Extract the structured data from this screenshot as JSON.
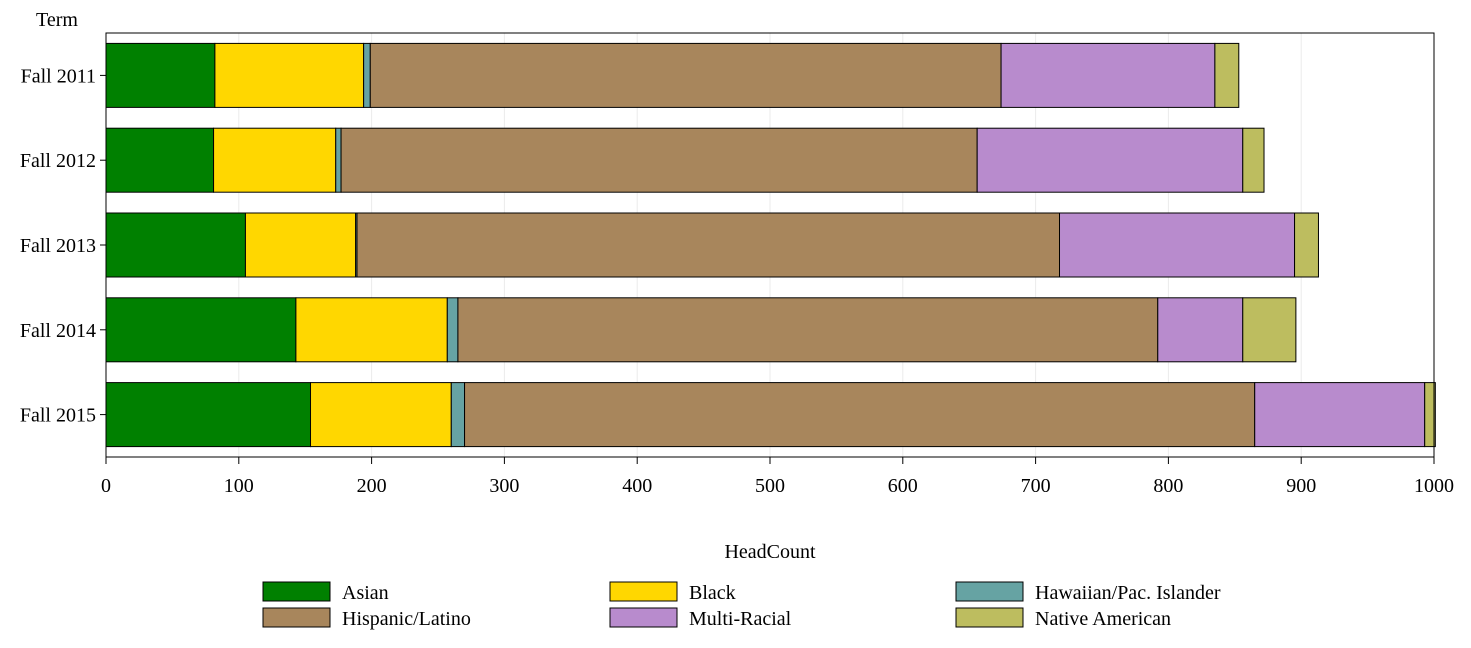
{
  "chart_data": {
    "type": "bar",
    "orientation": "horizontal",
    "stacked": true,
    "title": "",
    "ylabel": "Term",
    "xlabel": "HeadCount",
    "xlim": [
      0,
      1000
    ],
    "xticks": [
      0,
      100,
      200,
      300,
      400,
      500,
      600,
      700,
      800,
      900,
      1000
    ],
    "grid": "vertical",
    "legend_position": "bottom",
    "categories": [
      "Fall 2011",
      "Fall 2012",
      "Fall 2013",
      "Fall 2014",
      "Fall 2015"
    ],
    "series": [
      {
        "name": "Asian",
        "color": "#008000",
        "values": [
          82,
          81,
          105,
          143,
          154
        ]
      },
      {
        "name": "Black",
        "color": "#FFD700",
        "values": [
          112,
          92,
          83,
          114,
          106
        ]
      },
      {
        "name": "Hawaiian/Pac. Islander",
        "color": "#66A3A3",
        "values": [
          5,
          4,
          1,
          8,
          10
        ]
      },
      {
        "name": "Hispanic/Latino",
        "color": "#A8865C",
        "values": [
          475,
          479,
          529,
          527,
          595
        ]
      },
      {
        "name": "Multi-Racial",
        "color": "#B88BCD",
        "values": [
          161,
          200,
          177,
          64,
          128
        ]
      },
      {
        "name": "Native American",
        "color": "#BDBD5F",
        "values": [
          18,
          16,
          18,
          40,
          8
        ]
      }
    ]
  }
}
